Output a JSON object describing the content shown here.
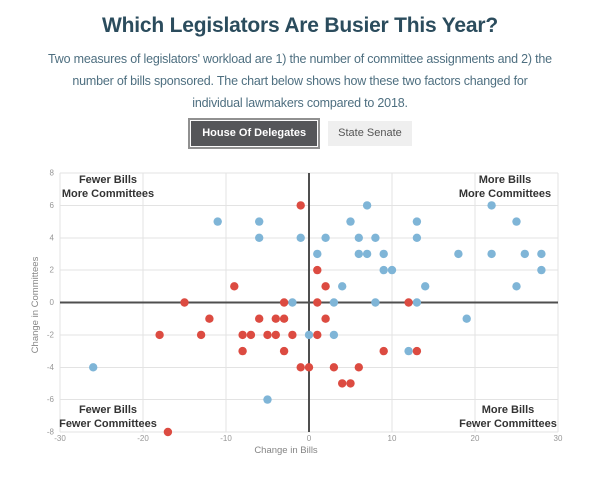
{
  "page": {
    "title": "Which Legislators Are Busier This Year?",
    "subtitle_lines": [
      "Two measures of legislators' workload are 1) the number of committee assignments and 2) the",
      "number of bills sponsored. The chart below shows how these two factors changed for",
      "individual lawmakers compared to 2018."
    ]
  },
  "toggle": {
    "house_label": "House Of Delegates",
    "senate_label": "State Senate"
  },
  "colors": {
    "red_point": "#dc4b41",
    "blue_point": "#7fb5d7",
    "title_text": "#2b4c5d",
    "subtitle_text": "#4e6f80",
    "gridline": "#e3e3e3",
    "zero_axis": "#4f4f4f",
    "tick_text": "#979797",
    "axis_label_text": "#858585",
    "quadrant_text": "#333333"
  },
  "chart_data": {
    "type": "scatter",
    "xlabel": "Change in Bills",
    "ylabel": "Change in Committees",
    "xlim": [
      -30,
      30
    ],
    "ylim": [
      -8,
      8
    ],
    "x_ticks": [
      -30,
      -20,
      -10,
      0,
      10,
      20,
      30
    ],
    "y_ticks": [
      -8,
      -6,
      -4,
      -2,
      0,
      2,
      4,
      6,
      8
    ],
    "grid": true,
    "legend": "none",
    "quadrant_labels": {
      "top_left": [
        "Fewer Bills",
        "More Committees"
      ],
      "top_right": [
        "More Bills",
        "More Committees"
      ],
      "bottom_left": [
        "Fewer Bills",
        "Fewer Committees"
      ],
      "bottom_right": [
        "More Bills",
        "Fewer Committees"
      ]
    },
    "series": [
      {
        "name": "blue",
        "color": "#7fb5d7",
        "points": [
          [
            7,
            6
          ],
          [
            22,
            6
          ],
          [
            -11,
            5
          ],
          [
            -6,
            5
          ],
          [
            5,
            5
          ],
          [
            13,
            5
          ],
          [
            25,
            5
          ],
          [
            -6,
            4
          ],
          [
            -1,
            4
          ],
          [
            2,
            4
          ],
          [
            6,
            4
          ],
          [
            8,
            4
          ],
          [
            13,
            4
          ],
          [
            1,
            3
          ],
          [
            6,
            3
          ],
          [
            7,
            3
          ],
          [
            9,
            3
          ],
          [
            18,
            3
          ],
          [
            22,
            3
          ],
          [
            26,
            3
          ],
          [
            28,
            3
          ],
          [
            9,
            2
          ],
          [
            10,
            2
          ],
          [
            28,
            2
          ],
          [
            4,
            1
          ],
          [
            14,
            1
          ],
          [
            25,
            1
          ],
          [
            -2,
            0
          ],
          [
            3,
            0
          ],
          [
            8,
            0
          ],
          [
            13,
            0
          ],
          [
            19,
            -1
          ],
          [
            0,
            -2
          ],
          [
            3,
            -2
          ],
          [
            12,
            -3
          ],
          [
            -26,
            -4
          ],
          [
            -5,
            -6
          ]
        ]
      },
      {
        "name": "red",
        "color": "#dc4b41",
        "points": [
          [
            -1,
            6
          ],
          [
            1,
            2
          ],
          [
            -9,
            1
          ],
          [
            2,
            1
          ],
          [
            -15,
            0
          ],
          [
            -3,
            0
          ],
          [
            1,
            0
          ],
          [
            12,
            0
          ],
          [
            -12,
            -1
          ],
          [
            -6,
            -1
          ],
          [
            -4,
            -1
          ],
          [
            -3,
            -1
          ],
          [
            2,
            -1
          ],
          [
            -18,
            -2
          ],
          [
            -13,
            -2
          ],
          [
            -8,
            -2
          ],
          [
            -7,
            -2
          ],
          [
            -5,
            -2
          ],
          [
            -4,
            -2
          ],
          [
            -2,
            -2
          ],
          [
            1,
            -2
          ],
          [
            -8,
            -3
          ],
          [
            -3,
            -3
          ],
          [
            9,
            -3
          ],
          [
            13,
            -3
          ],
          [
            -1,
            -4
          ],
          [
            0,
            -4
          ],
          [
            3,
            -4
          ],
          [
            6,
            -4
          ],
          [
            4,
            -5
          ],
          [
            5,
            -5
          ],
          [
            -17,
            -8
          ]
        ]
      }
    ]
  }
}
